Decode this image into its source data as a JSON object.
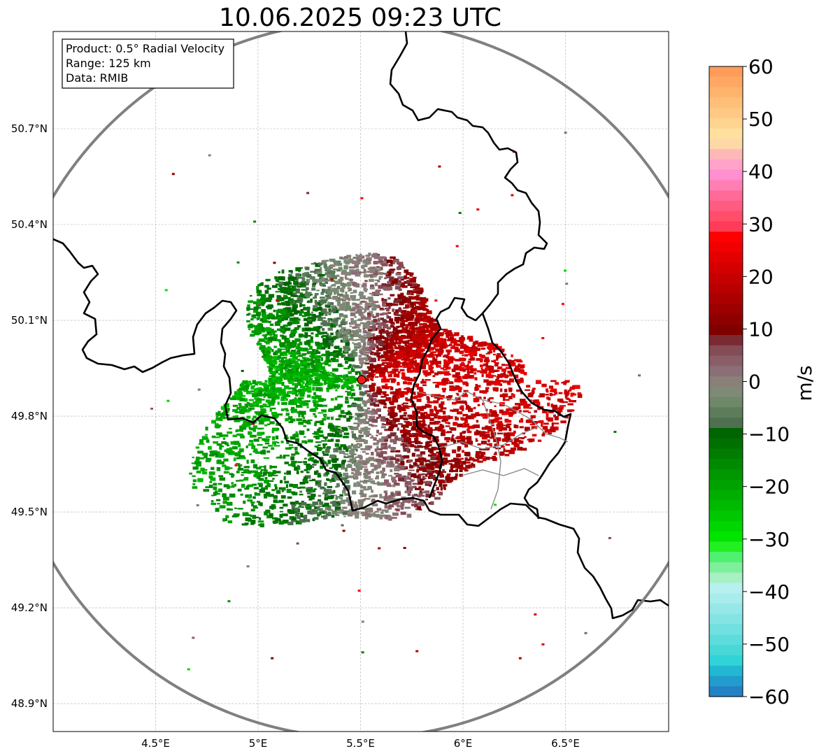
{
  "title": "10.06.2025 09:23 UTC",
  "info_box": {
    "product": "Product: 0.5° Radial Velocity",
    "range": "Range: 125 km",
    "data": "Data: RMIB"
  },
  "lon_ticks": [
    {
      "value": 4.5,
      "label": "4.5°E"
    },
    {
      "value": 5.0,
      "label": "5°E"
    },
    {
      "value": 5.5,
      "label": "5.5°E"
    },
    {
      "value": 6.0,
      "label": "6°E"
    },
    {
      "value": 6.5,
      "label": "6.5°E"
    }
  ],
  "lat_ticks": [
    {
      "value": 50.7,
      "label": "50.7°N"
    },
    {
      "value": 50.4,
      "label": "50.4°N"
    },
    {
      "value": 50.1,
      "label": "50.1°N"
    },
    {
      "value": 49.8,
      "label": "49.8°N"
    },
    {
      "value": 49.5,
      "label": "49.5°N"
    },
    {
      "value": 49.2,
      "label": "49.2°N"
    },
    {
      "value": 48.9,
      "label": "48.9°N"
    }
  ],
  "colorbar": {
    "label": "m/s",
    "min": -60,
    "max": 60,
    "ticks": [
      {
        "value": 60,
        "label": "60"
      },
      {
        "value": 50,
        "label": "50"
      },
      {
        "value": 40,
        "label": "40"
      },
      {
        "value": 30,
        "label": "30"
      },
      {
        "value": 20,
        "label": "20"
      },
      {
        "value": 10,
        "label": "10"
      },
      {
        "value": 0,
        "label": "0"
      },
      {
        "value": -10,
        "label": "−10"
      },
      {
        "value": -20,
        "label": "−20"
      },
      {
        "value": -30,
        "label": "−30"
      },
      {
        "value": -40,
        "label": "−40"
      },
      {
        "value": -50,
        "label": "−50"
      },
      {
        "value": -60,
        "label": "−60"
      }
    ],
    "colors": [
      "#ff9c5a",
      "#ffa863",
      "#ffb46e",
      "#ffbf78",
      "#ffc985",
      "#ffd491",
      "#ffe09e",
      "#ffd8a8",
      "#ffb8b8",
      "#ffa3c8",
      "#ff8fd0",
      "#ff7fb5",
      "#ff6a98",
      "#ff5c80",
      "#ff4d6a",
      "#ff3b57",
      "#ff0000",
      "#f00000",
      "#e20000",
      "#d40000",
      "#c60000",
      "#b80000",
      "#aa0000",
      "#9c0000",
      "#8e0000",
      "#800000",
      "#7a2a33",
      "#844c55",
      "#8a5e68",
      "#8c6e76",
      "#8a8078",
      "#7e8a78",
      "#6e8868",
      "#5c7c5c",
      "#4e7050",
      "#006400",
      "#007000",
      "#007c00",
      "#008a00",
      "#009600",
      "#00a200",
      "#00ae00",
      "#00ba00",
      "#00c800",
      "#00d600",
      "#00e400",
      "#22f022",
      "#50f070",
      "#7ef09c",
      "#a6f0c4",
      "#b8f0f0",
      "#a8ecec",
      "#96e8e8",
      "#84e4e4",
      "#70e0e0",
      "#5cdcdc",
      "#48d8d8",
      "#30d4d8",
      "#22b8d4",
      "#229ccc",
      "#2282c4"
    ]
  },
  "radar_site": {
    "lon": 5.505,
    "lat": 49.914
  },
  "radar_velocity_field": {
    "approaching_max": "-22",
    "receding_max": "22"
  },
  "style": {
    "range_ring_color": "#808080",
    "border_color": "#000000",
    "site_marker_color": "#e8201c"
  }
}
